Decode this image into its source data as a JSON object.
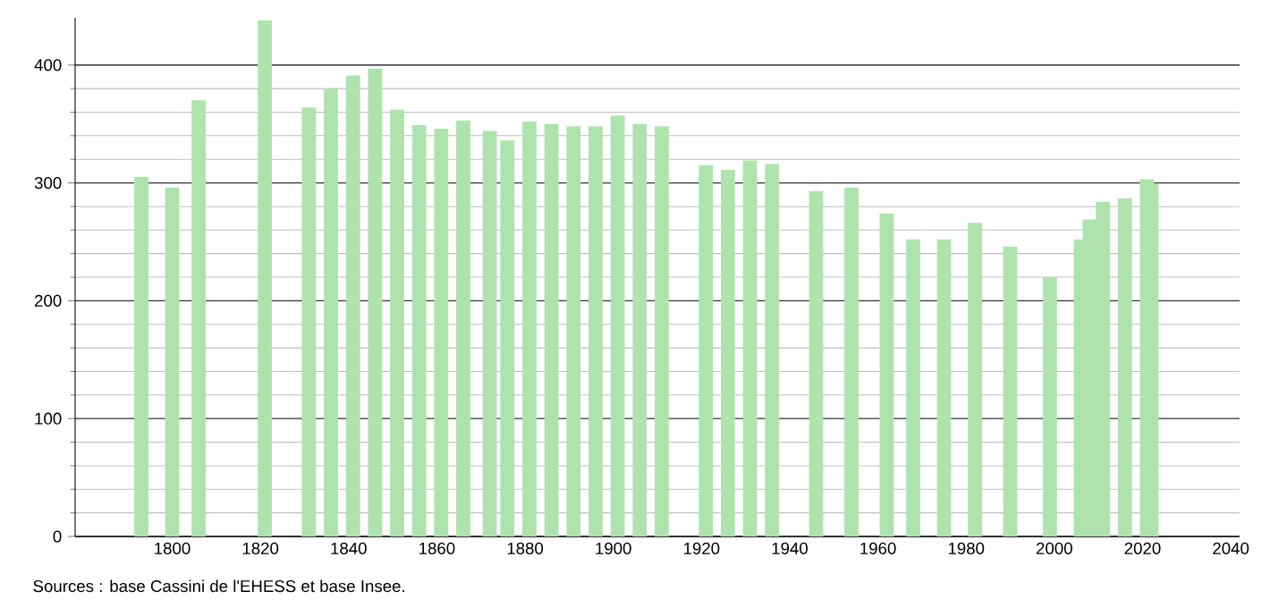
{
  "chart_data": {
    "type": "bar",
    "color": "#aee3ae",
    "grid": "y",
    "x": [
      1793,
      1800,
      1806,
      1821,
      1831,
      1836,
      1841,
      1846,
      1851,
      1856,
      1861,
      1866,
      1872,
      1876,
      1881,
      1886,
      1891,
      1896,
      1901,
      1906,
      1911,
      1921,
      1926,
      1931,
      1936,
      1946,
      1954,
      1962,
      1968,
      1975,
      1982,
      1990,
      1999,
      2006,
      2008,
      2011,
      2016,
      2021,
      2022
    ],
    "values": [
      305,
      296,
      370,
      438,
      364,
      380,
      391,
      397,
      362,
      349,
      346,
      353,
      344,
      336,
      352,
      350,
      348,
      348,
      357,
      350,
      348,
      315,
      311,
      319,
      316,
      293,
      296,
      274,
      252,
      252,
      266,
      246,
      220,
      252,
      269,
      284,
      287,
      303,
      299
    ],
    "xlim": [
      1778,
      2042
    ],
    "ylim": [
      0,
      440
    ],
    "xticks": [
      1800,
      1820,
      1840,
      1860,
      1880,
      1900,
      1920,
      1940,
      1960,
      1980,
      2000,
      2020,
      2040
    ],
    "yticks": [
      0,
      100,
      200,
      300,
      400
    ],
    "annotations": [
      "Sources : base Cassini de l'EHESS et base Insee."
    ]
  }
}
